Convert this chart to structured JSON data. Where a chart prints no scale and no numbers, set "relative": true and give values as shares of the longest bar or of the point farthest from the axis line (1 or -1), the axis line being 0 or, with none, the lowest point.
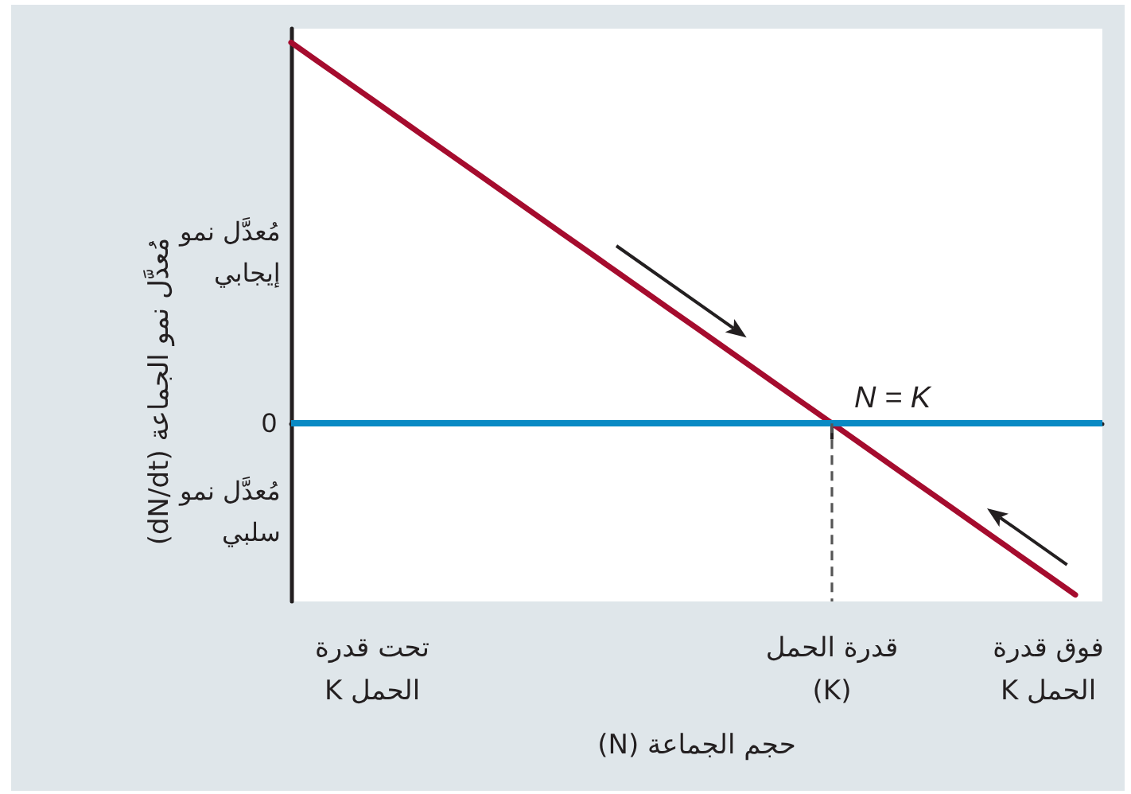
{
  "chart_data": {
    "type": "line",
    "relative": true,
    "xlabel": "حجم الجماعة (N)",
    "ylabel": "مُعدَّل نمو الجماعة (dN/dt)",
    "annotations": [
      "مُعدَّل نمو إيجابي",
      "مُعدَّل نمو سلبي"
    ],
    "categories": [
      null,
      null,
      null,
      "تحت قدرة الحمل K",
      null,
      null,
      null,
      null,
      null,
      null,
      null,
      null,
      null,
      null,
      null,
      null,
      null,
      null,
      null,
      null,
      "قدرة الحمل (K)",
      null,
      null,
      null,
      null,
      null,
      null,
      null,
      "فوق قدرة الحمل K",
      null,
      null
    ],
    "series": [
      {
        "color": "#a50c2e",
        "values": [
          1,
          0.95,
          0.9,
          0.85,
          0.8,
          0.75,
          0.7,
          0.65,
          0.6,
          0.55,
          0.5,
          0.45,
          0.4,
          0.35,
          0.3,
          0.25,
          0.2,
          0.15,
          0.1,
          0.05,
          0,
          -0.05,
          -0.1,
          -0.15,
          -0.2,
          -0.25,
          -0.3,
          -0.35,
          -0.4,
          -0.45,
          null
        ]
      }
    ],
    "ref_lines": [
      {
        "axis": "y",
        "value": 0,
        "label": "0",
        "color": "#0a8ac4",
        "line_style": "solid"
      },
      {
        "axis": "x",
        "value": "قدرة الحمل (K)",
        "label": "N = K",
        "color": "#555555",
        "line_style": "dashed"
      }
    ],
    "marker": "none",
    "line_style": "solid"
  }
}
